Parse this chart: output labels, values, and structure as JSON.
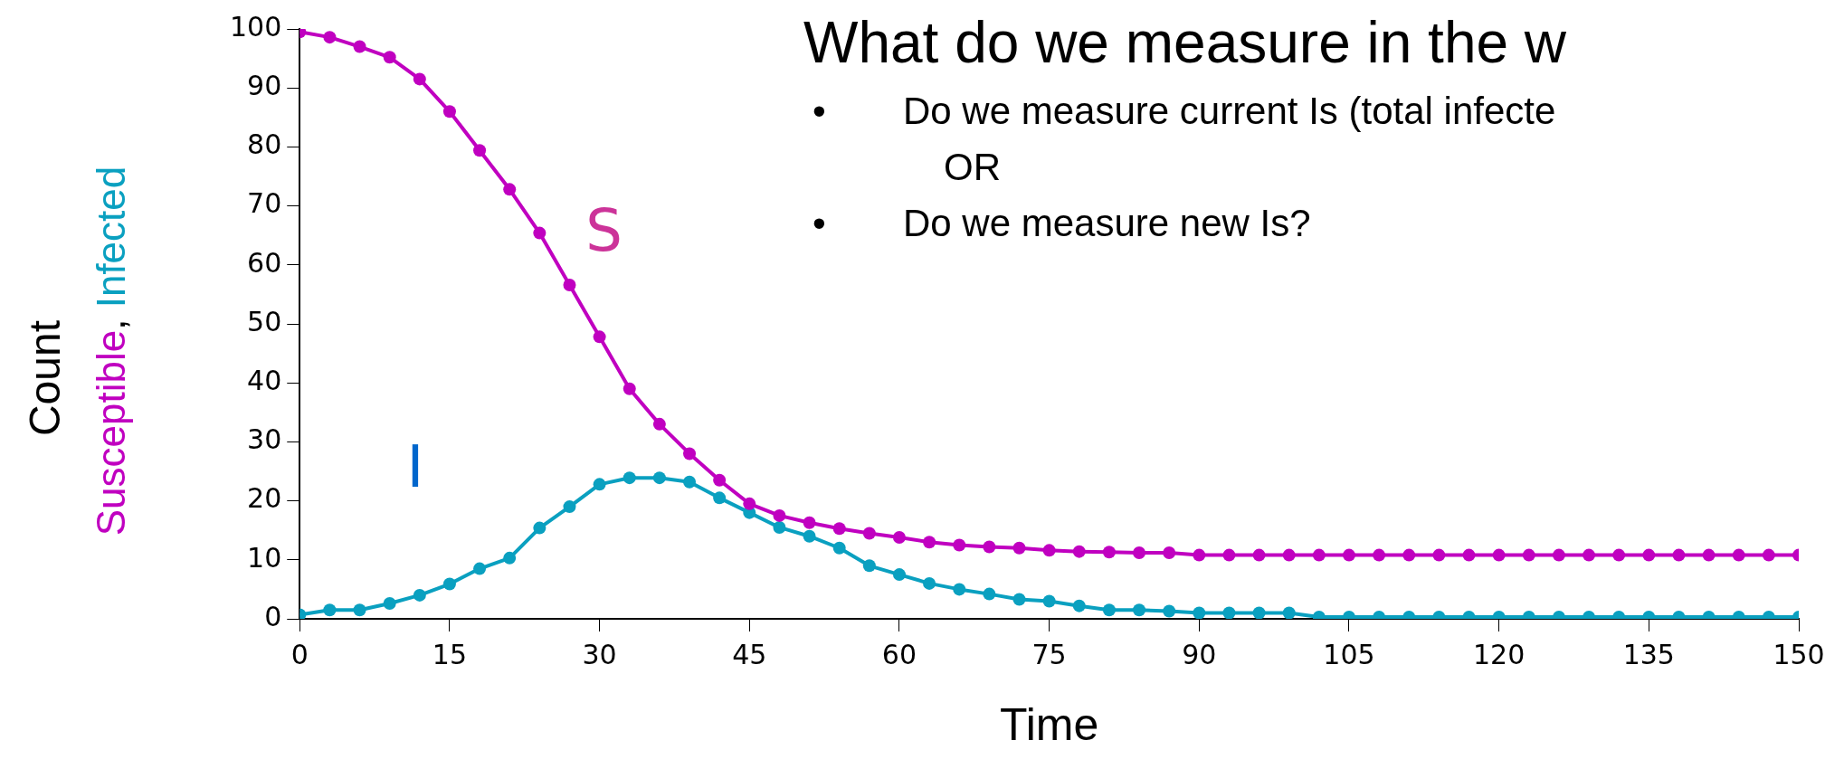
{
  "chart_data": {
    "type": "line",
    "title": "What do we measure in the w",
    "xlabel": "Time",
    "ylabel": "Count",
    "x": [
      0,
      3,
      6,
      9,
      12,
      15,
      18,
      21,
      24,
      27,
      30,
      33,
      36,
      39,
      42,
      45,
      48,
      51,
      54,
      57,
      60,
      63,
      66,
      69,
      72,
      75,
      78,
      81,
      84,
      87,
      90,
      93,
      96,
      99,
      102,
      105,
      108,
      111,
      114,
      117,
      120,
      123,
      126,
      129,
      132,
      135,
      138,
      141,
      144,
      147,
      150
    ],
    "series": [
      {
        "name": "Susceptible",
        "color": "#c000c0",
        "values": [
          99.5,
          98.6,
          97,
          95.2,
          91.5,
          86,
          79.4,
          72.8,
          65.4,
          56.6,
          47.8,
          39,
          33,
          28,
          23.5,
          19.5,
          17.5,
          16.3,
          15.3,
          14.5,
          13.8,
          13,
          12.5,
          12.2,
          12,
          11.6,
          11.4,
          11.3,
          11.2,
          11.2,
          10.8,
          10.8,
          10.8,
          10.8,
          10.8,
          10.8,
          10.8,
          10.8,
          10.8,
          10.8,
          10.8,
          10.8,
          10.8,
          10.8,
          10.8,
          10.8,
          10.8,
          10.8,
          10.8,
          10.8,
          10.8
        ]
      },
      {
        "name": "Infected",
        "color": "#0aa0c0",
        "values": [
          0.7,
          1.5,
          1.5,
          2.6,
          4,
          5.9,
          8.5,
          10.3,
          15.4,
          19,
          22.8,
          23.9,
          23.9,
          23.2,
          20.5,
          18,
          15.5,
          14,
          12,
          9,
          7.5,
          6,
          5,
          4.2,
          3.3,
          3,
          2.2,
          1.5,
          1.5,
          1.3,
          1,
          1,
          1,
          1,
          0.3,
          0.3,
          0.3,
          0.3,
          0.3,
          0.3,
          0.3,
          0.3,
          0.3,
          0.3,
          0.3,
          0.3,
          0.3,
          0.3,
          0.3,
          0.3,
          0.3
        ]
      }
    ],
    "xlim": [
      0,
      150
    ],
    "xticks": [
      0,
      15,
      30,
      45,
      60,
      75,
      90,
      105,
      120,
      135,
      150
    ],
    "ylim": [
      0,
      100
    ],
    "yticks": [
      0,
      10,
      20,
      30,
      40,
      50,
      60,
      70,
      80,
      90,
      100
    ],
    "grid": false,
    "legend": false,
    "marker": "circle",
    "line_style": "solid",
    "annotations": [
      "S",
      "I",
      ", ",
      "• Do we measure current Is (total infecte",
      "OR",
      "• Do we measure new Is?"
    ]
  }
}
